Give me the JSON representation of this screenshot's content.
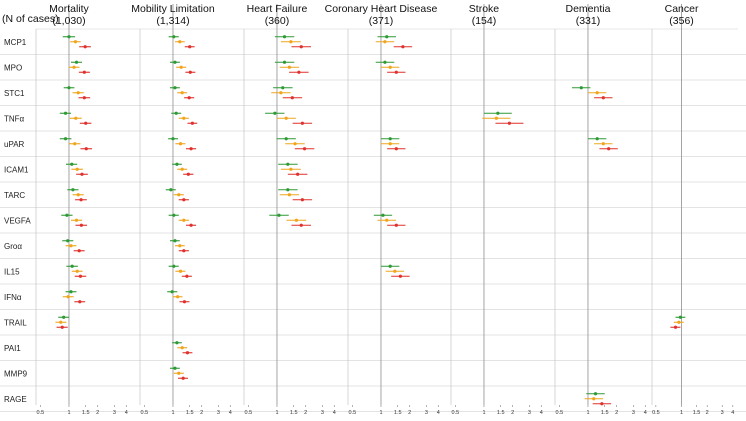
{
  "chart_data": {
    "type": "forest",
    "row_header": "(N of cases)",
    "tick_labels": [
      "0.5",
      "1",
      "1.5",
      "2",
      "3",
      "4"
    ],
    "tick_values": [
      0.5,
      1,
      1.5,
      2,
      3,
      4
    ],
    "colors": {
      "green": "#2e9a35",
      "orange": "#f0a51c",
      "red": "#e0312c"
    },
    "rows": [
      "MCP1",
      "MPO",
      "STC1",
      "TNFα",
      "uPAR",
      "ICAM1",
      "TARC",
      "VEGFA",
      "Groα",
      "IL15",
      "IFNα",
      "TRAIL",
      "PAI1",
      "MMP9",
      "RAGE"
    ],
    "panels": [
      {
        "title": "Mortality",
        "n": "(1,030)",
        "estimates": {
          "MCP1": [
            [
              1.0,
              0.86,
              1.16
            ],
            [
              1.17,
              1.03,
              1.33
            ],
            [
              1.48,
              1.28,
              1.7
            ]
          ],
          "MPO": [
            [
              1.2,
              1.05,
              1.37
            ],
            [
              1.13,
              0.99,
              1.29
            ],
            [
              1.45,
              1.27,
              1.66
            ]
          ],
          "STC1": [
            [
              1.0,
              0.88,
              1.14
            ],
            [
              1.25,
              1.09,
              1.43
            ],
            [
              1.45,
              1.26,
              1.67
            ]
          ],
          "TNFα": [
            [
              0.92,
              0.8,
              1.05
            ],
            [
              1.18,
              1.02,
              1.36
            ],
            [
              1.5,
              1.3,
              1.72
            ]
          ],
          "uPAR": [
            [
              0.92,
              0.8,
              1.06
            ],
            [
              1.15,
              1.0,
              1.32
            ],
            [
              1.52,
              1.32,
              1.75
            ]
          ],
          "ICAM1": [
            [
              1.07,
              0.93,
              1.22
            ],
            [
              1.22,
              1.06,
              1.4
            ],
            [
              1.37,
              1.19,
              1.58
            ]
          ],
          "TARC": [
            [
              1.1,
              0.96,
              1.26
            ],
            [
              1.25,
              1.09,
              1.43
            ],
            [
              1.34,
              1.16,
              1.54
            ]
          ],
          "VEGFA": [
            [
              0.95,
              0.83,
              1.09
            ],
            [
              1.2,
              1.05,
              1.37
            ],
            [
              1.35,
              1.17,
              1.55
            ]
          ],
          "Groα": [
            [
              0.97,
              0.85,
              1.11
            ],
            [
              1.05,
              0.92,
              1.2
            ],
            [
              1.28,
              1.12,
              1.46
            ]
          ],
          "IL15": [
            [
              1.08,
              0.94,
              1.24
            ],
            [
              1.22,
              1.07,
              1.39
            ],
            [
              1.32,
              1.15,
              1.52
            ]
          ],
          "IFNα": [
            [
              1.05,
              0.92,
              1.2
            ],
            [
              0.98,
              0.86,
              1.12
            ],
            [
              1.3,
              1.14,
              1.48
            ]
          ],
          "TRAIL": [
            [
              0.88,
              0.77,
              1.0
            ],
            [
              0.82,
              0.72,
              0.94
            ],
            [
              0.85,
              0.74,
              0.97
            ]
          ]
        }
      },
      {
        "title": "Mobility Limitation",
        "n": "(1,314)",
        "estimates": {
          "MCP1": [
            [
              1.02,
              0.9,
              1.15
            ],
            [
              1.18,
              1.05,
              1.33
            ],
            [
              1.5,
              1.33,
              1.69
            ]
          ],
          "MPO": [
            [
              1.05,
              0.93,
              1.18
            ],
            [
              1.22,
              1.08,
              1.38
            ],
            [
              1.52,
              1.35,
              1.72
            ]
          ],
          "STC1": [
            [
              1.05,
              0.93,
              1.18
            ],
            [
              1.25,
              1.11,
              1.41
            ],
            [
              1.48,
              1.31,
              1.67
            ]
          ],
          "TNFα": [
            [
              1.08,
              0.96,
              1.22
            ],
            [
              1.3,
              1.15,
              1.47
            ],
            [
              1.6,
              1.42,
              1.8
            ]
          ],
          "uPAR": [
            [
              1.0,
              0.89,
              1.13
            ],
            [
              1.2,
              1.06,
              1.35
            ],
            [
              1.55,
              1.37,
              1.75
            ]
          ],
          "ICAM1": [
            [
              1.1,
              0.98,
              1.24
            ],
            [
              1.25,
              1.11,
              1.41
            ],
            [
              1.45,
              1.28,
              1.64
            ]
          ],
          "TARC": [
            [
              0.95,
              0.84,
              1.07
            ],
            [
              1.15,
              1.02,
              1.3
            ],
            [
              1.3,
              1.15,
              1.47
            ]
          ],
          "VEGFA": [
            [
              1.02,
              0.9,
              1.15
            ],
            [
              1.3,
              1.15,
              1.47
            ],
            [
              1.55,
              1.37,
              1.75
            ]
          ],
          "Groα": [
            [
              1.05,
              0.93,
              1.18
            ],
            [
              1.18,
              1.05,
              1.33
            ],
            [
              1.3,
              1.15,
              1.47
            ]
          ],
          "IL15": [
            [
              1.02,
              0.9,
              1.15
            ],
            [
              1.2,
              1.06,
              1.35
            ],
            [
              1.4,
              1.24,
              1.58
            ]
          ],
          "IFNα": [
            [
              0.98,
              0.87,
              1.11
            ],
            [
              1.12,
              0.99,
              1.26
            ],
            [
              1.32,
              1.17,
              1.49
            ]
          ],
          "PAI1": [
            [
              1.1,
              0.98,
              1.24
            ],
            [
              1.25,
              1.11,
              1.41
            ],
            [
              1.42,
              1.26,
              1.6
            ]
          ],
          "MMP9": [
            [
              1.05,
              0.93,
              1.18
            ],
            [
              1.15,
              1.02,
              1.3
            ],
            [
              1.28,
              1.13,
              1.44
            ]
          ]
        }
      },
      {
        "title": "Heart Failure",
        "n": "(360)",
        "estimates": {
          "MCP1": [
            [
              1.2,
              0.95,
              1.52
            ],
            [
              1.4,
              1.1,
              1.78
            ],
            [
              1.8,
              1.42,
              2.28
            ]
          ],
          "MPO": [
            [
              1.2,
              0.95,
              1.52
            ],
            [
              1.35,
              1.07,
              1.71
            ],
            [
              1.7,
              1.34,
              2.15
            ]
          ],
          "STC1": [
            [
              1.15,
              0.91,
              1.46
            ],
            [
              1.1,
              0.87,
              1.39
            ],
            [
              1.45,
              1.15,
              1.84
            ]
          ],
          "TNFα": [
            [
              0.95,
              0.75,
              1.2
            ],
            [
              1.25,
              0.99,
              1.58
            ],
            [
              1.85,
              1.46,
              2.34
            ]
          ],
          "uPAR": [
            [
              1.25,
              0.99,
              1.58
            ],
            [
              1.55,
              1.22,
              1.96
            ],
            [
              1.95,
              1.54,
              2.47
            ]
          ],
          "ICAM1": [
            [
              1.3,
              1.03,
              1.65
            ],
            [
              1.4,
              1.1,
              1.78
            ],
            [
              1.65,
              1.3,
              2.09
            ]
          ],
          "TARC": [
            [
              1.3,
              1.03,
              1.65
            ],
            [
              1.35,
              1.07,
              1.71
            ],
            [
              1.85,
              1.46,
              2.34
            ]
          ],
          "VEGFA": [
            [
              1.05,
              0.83,
              1.33
            ],
            [
              1.6,
              1.26,
              2.03
            ],
            [
              1.8,
              1.42,
              2.28
            ]
          ]
        }
      },
      {
        "title": "Coronary Heart Disease",
        "n": "(371)",
        "estimates": {
          "MCP1": [
            [
              1.15,
              0.92,
              1.44
            ],
            [
              1.1,
              0.88,
              1.38
            ],
            [
              1.7,
              1.36,
              2.13
            ]
          ],
          "MPO": [
            [
              1.1,
              0.88,
              1.38
            ],
            [
              1.25,
              1.0,
              1.56
            ],
            [
              1.45,
              1.16,
              1.81
            ]
          ],
          "uPAR": [
            [
              1.25,
              1.0,
              1.56
            ],
            [
              1.25,
              1.0,
              1.56
            ],
            [
              1.45,
              1.16,
              1.81
            ]
          ],
          "VEGFA": [
            [
              1.05,
              0.84,
              1.31
            ],
            [
              1.15,
              0.92,
              1.44
            ],
            [
              1.45,
              1.16,
              1.81
            ]
          ],
          "IL15": [
            [
              1.25,
              1.0,
              1.56
            ],
            [
              1.4,
              1.12,
              1.75
            ],
            [
              1.6,
              1.28,
              2.0
            ]
          ]
        }
      },
      {
        "title": "Stroke",
        "n": "(154)",
        "estimates": {
          "TNFα": [
            [
              1.4,
              1.0,
              1.96
            ],
            [
              1.35,
              0.96,
              1.9
            ],
            [
              1.85,
              1.32,
              2.6
            ]
          ]
        }
      },
      {
        "title": "Dementia",
        "n": "(331)",
        "estimates": {
          "STC1": [
            [
              0.85,
              0.68,
              1.06
            ],
            [
              1.25,
              1.0,
              1.56
            ],
            [
              1.45,
              1.16,
              1.81
            ]
          ],
          "uPAR": [
            [
              1.25,
              1.0,
              1.56
            ],
            [
              1.45,
              1.16,
              1.81
            ],
            [
              1.65,
              1.32,
              2.06
            ]
          ],
          "RAGE": [
            [
              1.2,
              0.96,
              1.5
            ],
            [
              1.15,
              0.92,
              1.44
            ],
            [
              1.4,
              1.12,
              1.75
            ]
          ]
        }
      },
      {
        "title": "Cancer",
        "n": "(356)",
        "estimates": {
          "TRAIL": [
            [
              0.97,
              0.85,
              1.11
            ],
            [
              0.93,
              0.81,
              1.06
            ],
            [
              0.85,
              0.74,
              0.97
            ]
          ]
        }
      }
    ]
  }
}
